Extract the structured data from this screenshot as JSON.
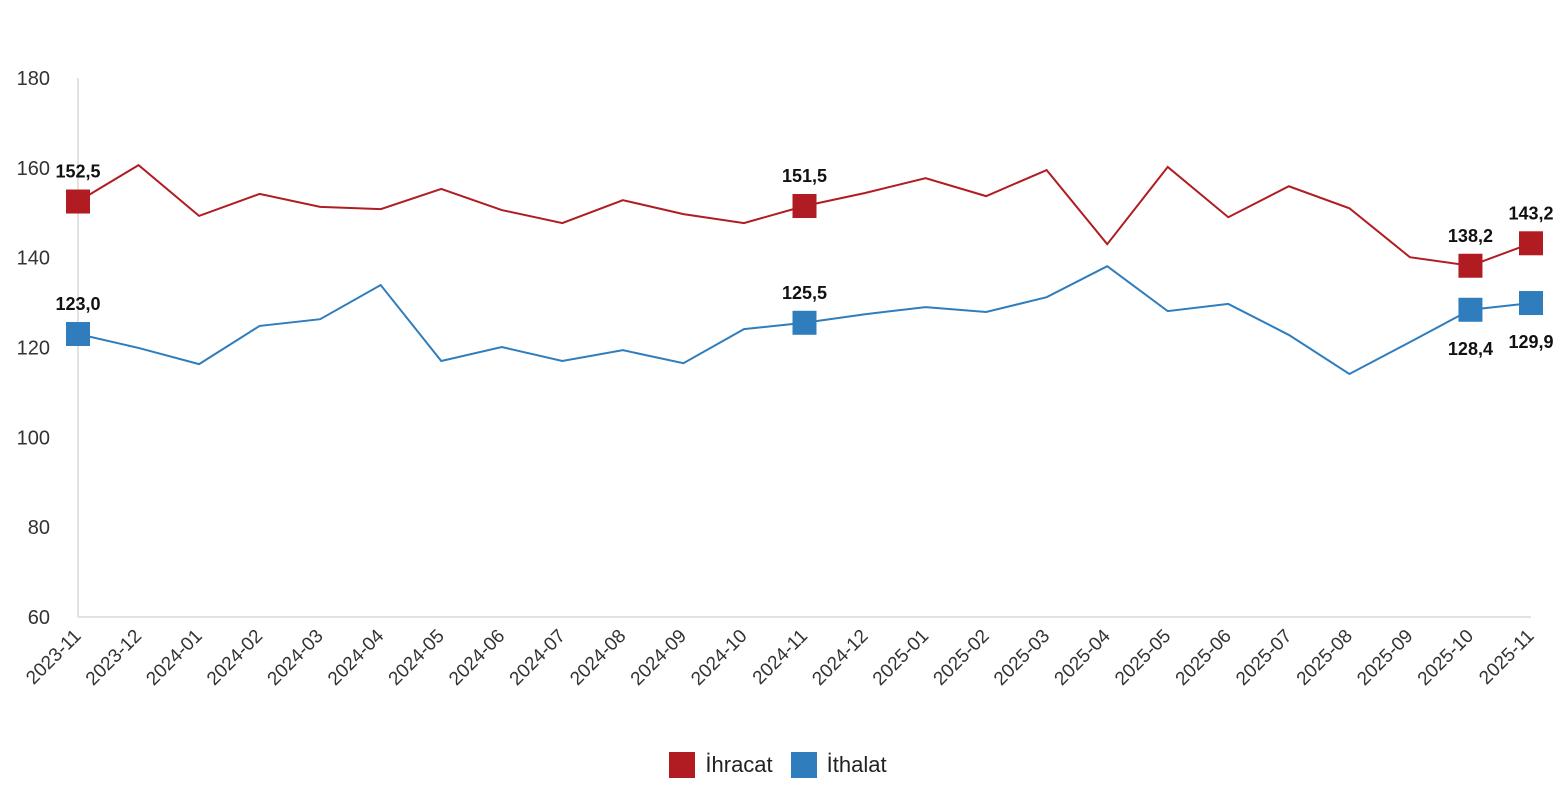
{
  "chart_data": {
    "type": "line",
    "title": "",
    "xlabel": "",
    "ylabel": "",
    "ylim": [
      60,
      180
    ],
    "yticks": [
      60,
      80,
      100,
      120,
      140,
      160,
      180
    ],
    "grid": false,
    "legend_position": "bottom-center",
    "categories": [
      "2023-11",
      "2023-12",
      "2024-01",
      "2024-02",
      "2024-03",
      "2024-04",
      "2024-05",
      "2024-06",
      "2024-07",
      "2024-08",
      "2024-09",
      "2024-10",
      "2024-11",
      "2024-12",
      "2025-01",
      "2025-02",
      "2025-03",
      "2025-04",
      "2025-05",
      "2025-06",
      "2025-07",
      "2025-08",
      "2025-09",
      "2025-10",
      "2025-11"
    ],
    "series": [
      {
        "name": "İhracat",
        "color": "#b01c22",
        "values": [
          152.5,
          160.6,
          149.3,
          154.2,
          151.3,
          150.8,
          155.3,
          150.6,
          147.7,
          152.8,
          149.7,
          147.7,
          151.5,
          154.4,
          157.7,
          153.7,
          159.5,
          143.0,
          160.2,
          149.0,
          155.9,
          151.0,
          140.1,
          138.2,
          143.2
        ],
        "labels": [
          {
            "index": 0,
            "text": "152,5"
          },
          {
            "index": 12,
            "text": "151,5"
          },
          {
            "index": 23,
            "text": "138,2"
          },
          {
            "index": 24,
            "text": "143,2"
          }
        ]
      },
      {
        "name": "İthalat",
        "color": "#2f7dbd",
        "values": [
          123.0,
          119.9,
          116.3,
          124.8,
          126.3,
          133.9,
          117.0,
          120.1,
          117.0,
          119.4,
          116.5,
          124.1,
          125.5,
          127.4,
          129.0,
          127.9,
          131.2,
          138.1,
          128.1,
          129.7,
          122.8,
          114.1,
          121.2,
          128.4,
          129.9
        ],
        "labels": [
          {
            "index": 0,
            "text": "123,0"
          },
          {
            "index": 12,
            "text": "125,5"
          },
          {
            "index": 23,
            "text": "128,4"
          },
          {
            "index": 24,
            "text": "129,9"
          }
        ]
      }
    ]
  }
}
